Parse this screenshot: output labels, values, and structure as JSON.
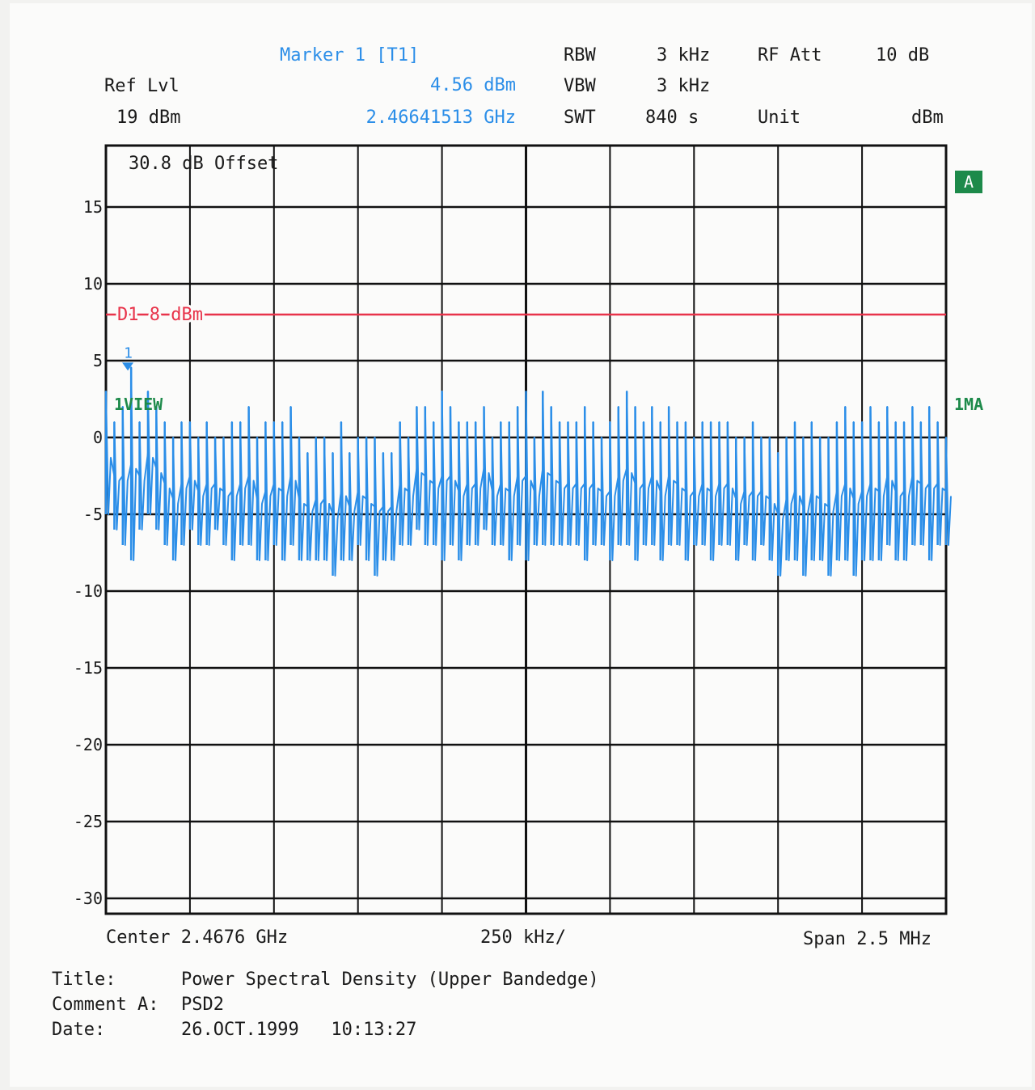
{
  "header": {
    "marker_title": "Marker 1 [T1]",
    "marker_level": "4.56 dBm",
    "marker_freq": "2.46641513 GHz",
    "ref_lvl_label": "Ref Lvl",
    "ref_lvl_value": "19 dBm",
    "rbw_label": "RBW",
    "rbw_value": "3 kHz",
    "vbw_label": "VBW",
    "vbw_value": "3 kHz",
    "swt_label": "SWT",
    "swt_value": "840 s",
    "rfatt_label": "RF Att",
    "rfatt_value": "10 dB",
    "unit_label": "Unit",
    "unit_value": "dBm"
  },
  "annotations": {
    "offset": "30.8 dB Offset",
    "limit_line": "D1 8 dBm",
    "marker_number": "1",
    "trace_view": "1VIEW",
    "trace_mode": "1MA",
    "screen_badge": "A"
  },
  "bottom_axis": {
    "center": "Center 2.4676 GHz",
    "div": "250 kHz/",
    "span": "Span 2.5 MHz"
  },
  "footer": {
    "title_label": "Title:",
    "title_value": "Power Spectral Density (Upper Bandedge)",
    "comment_label": "Comment A:",
    "comment_value": "PSD2",
    "date_label": "Date:",
    "date_value": "26.OCT.1999   10:13:27"
  },
  "colors": {
    "trace": "#2b8ee8",
    "limit": "#e8334a",
    "grid": "#111111",
    "annotation_green": "#1d8a4a"
  },
  "chart_data": {
    "type": "line",
    "x_unit": "GHz",
    "x_center": 2.4676,
    "x_span_mhz": 2.5,
    "x_per_division_khz": 250,
    "xlim": [
      2.46635,
      2.46885
    ],
    "ylim": [
      -31,
      19
    ],
    "y_ticks": [
      15,
      10,
      5,
      0,
      -5,
      -10,
      -15,
      -20,
      -25,
      -30
    ],
    "grid": true,
    "limit_line": {
      "name": "D1",
      "value": 8
    },
    "marker": {
      "x": 2.46641513,
      "y": 4.56
    },
    "series": [
      {
        "x": [
          2.46635,
          2.466375,
          2.4664,
          2.466425,
          2.46645,
          2.466475,
          2.4665,
          2.466525,
          2.46655,
          2.466575,
          2.4666,
          2.466625,
          2.46665,
          2.466675,
          2.4667,
          2.466725,
          2.46675,
          2.466775,
          2.4668,
          2.466825,
          2.46685,
          2.466875,
          2.4669,
          2.466925,
          2.46695,
          2.466975,
          2.467,
          2.467025,
          2.46705,
          2.467075,
          2.4671,
          2.467125,
          2.46715,
          2.467175,
          2.4672,
          2.467225,
          2.46725,
          2.467275,
          2.4673,
          2.467325,
          2.46735,
          2.467375,
          2.4674,
          2.467425,
          2.46745,
          2.467475,
          2.4675,
          2.467525,
          2.46755,
          2.467575,
          2.4676,
          2.467625,
          2.46765,
          2.467675,
          2.4677,
          2.467725,
          2.46775,
          2.467775,
          2.4678,
          2.467825,
          2.46785,
          2.467875,
          2.4679,
          2.467925,
          2.46795,
          2.467975,
          2.468,
          2.468025,
          2.46805,
          2.468075,
          2.4681,
          2.468125,
          2.46815,
          2.468175,
          2.4682,
          2.468225,
          2.46825,
          2.468275,
          2.4683,
          2.468325,
          2.46835,
          2.468375,
          2.4684,
          2.468425,
          2.46845,
          2.468475,
          2.4685,
          2.468525,
          2.46855,
          2.468575,
          2.4686,
          2.468625,
          2.46865,
          2.468675,
          2.4687,
          2.468725,
          2.46875,
          2.468775,
          2.4688,
          2.468825,
          2.46885
        ],
        "min": [
          -5,
          -6,
          -7,
          -8,
          -6,
          -5,
          -6,
          -7,
          -8,
          -7,
          -6,
          -7,
          -7,
          -6,
          -7,
          -8,
          -7,
          -7,
          -8,
          -8,
          -7,
          -8,
          -7,
          -8,
          -8,
          -8,
          -8,
          -9,
          -8,
          -8,
          -7,
          -8,
          -9,
          -8,
          -8,
          -7,
          -7,
          -6,
          -7,
          -7,
          -8,
          -7,
          -8,
          -7,
          -7,
          -6,
          -7,
          -7,
          -8,
          -7,
          -8,
          -7,
          -7,
          -7,
          -7,
          -7,
          -7,
          -8,
          -7,
          -7,
          -8,
          -7,
          -7,
          -8,
          -7,
          -7,
          -8,
          -7,
          -7,
          -8,
          -7,
          -7,
          -8,
          -7,
          -7,
          -8,
          -7,
          -8,
          -7,
          -8,
          -9,
          -8,
          -8,
          -9,
          -8,
          -8,
          -9,
          -8,
          -8,
          -9,
          -8,
          -8,
          -8,
          -7,
          -8,
          -8,
          -7,
          -7,
          -8,
          -7,
          -7
        ],
        "max": [
          3,
          1,
          2,
          4.56,
          1,
          3,
          2,
          1,
          0,
          1,
          1,
          0,
          1,
          0,
          0,
          1,
          1,
          2,
          0,
          1,
          1,
          1,
          2,
          0,
          -1,
          0,
          0,
          -1,
          1,
          -1,
          0,
          0,
          0,
          -1,
          -1,
          1,
          0,
          2,
          2,
          1,
          3,
          2,
          1,
          1,
          1,
          2,
          0,
          1,
          1,
          2,
          3,
          0,
          3,
          2,
          1,
          1,
          1,
          2,
          1,
          0,
          1,
          2,
          3,
          2,
          1,
          2,
          1,
          2,
          1,
          1,
          0,
          1,
          1,
          1,
          1,
          0,
          0,
          1,
          0,
          0,
          -1,
          0,
          1,
          0,
          1,
          0,
          0,
          1,
          2,
          1,
          1,
          2,
          1,
          2,
          1,
          1,
          2,
          1,
          2,
          1,
          0
        ]
      }
    ]
  }
}
